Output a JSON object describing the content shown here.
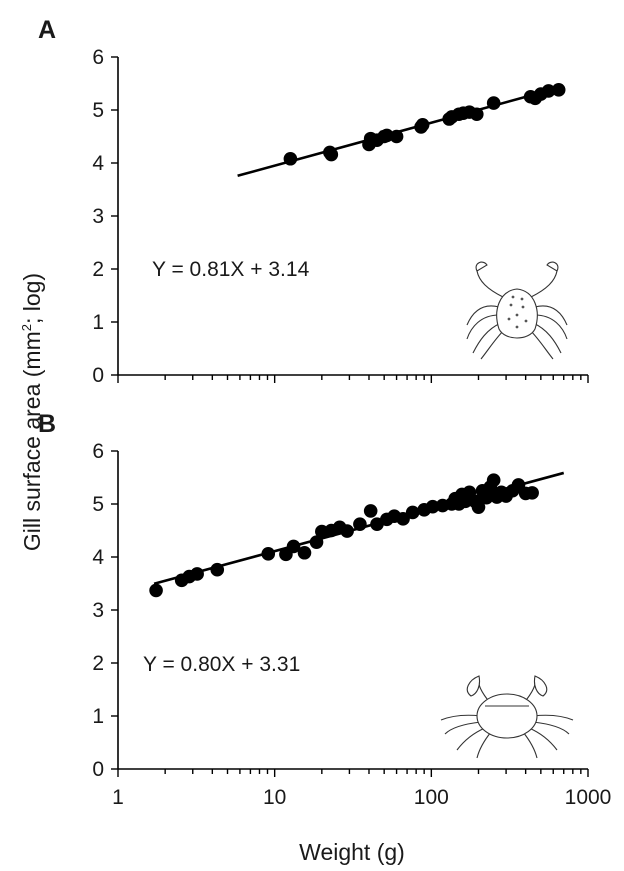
{
  "y_axis_title_pre": "Gill surface area (mm",
  "y_axis_title_sup": "2",
  "y_axis_title_post": "; log)",
  "chart_data": [
    {
      "type": "scatter",
      "panel": "A",
      "equation": "Y = 0.81X + 3.14",
      "icon": "spider-crab-icon",
      "x_scale": "log",
      "xlim": [
        1,
        1000
      ],
      "ylim": [
        0,
        6
      ],
      "y_ticks": [
        0,
        1,
        2,
        3,
        4,
        5,
        6
      ],
      "fit_x_range": [
        5.8,
        700
      ],
      "fit": {
        "slope": 0.81,
        "intercept": 3.14
      },
      "x": [
        12.6,
        22.5,
        23,
        40,
        41,
        45,
        50,
        52,
        60,
        86,
        88,
        130,
        135,
        150,
        160,
        175,
        195,
        250,
        430,
        460,
        500,
        560,
        650
      ],
      "y": [
        4.08,
        4.2,
        4.16,
        4.35,
        4.46,
        4.43,
        4.5,
        4.52,
        4.5,
        4.68,
        4.72,
        4.83,
        4.87,
        4.92,
        4.94,
        4.96,
        4.92,
        5.13,
        5.25,
        5.22,
        5.3,
        5.36,
        5.38
      ]
    },
    {
      "type": "scatter",
      "panel": "B",
      "equation": "Y = 0.80X + 3.31",
      "icon": "shore-crab-icon",
      "x_scale": "log",
      "xlim": [
        1,
        1000
      ],
      "ylim": [
        0,
        6
      ],
      "y_ticks": [
        0,
        1,
        2,
        3,
        4,
        5,
        6
      ],
      "x_ticks": [
        1,
        10,
        100,
        1000
      ],
      "x_tick_labels": [
        "1",
        "10",
        "100",
        "1000"
      ],
      "xlabel": "Weight (g)",
      "fit_x_range": [
        1.7,
        700
      ],
      "fit": {
        "slope": 0.8,
        "intercept": 3.31
      },
      "x": [
        1.75,
        2.55,
        2.85,
        3.2,
        4.3,
        9.1,
        11.8,
        13.2,
        15.5,
        18.5,
        20,
        23,
        26,
        29,
        35,
        41,
        45,
        52,
        58,
        66,
        76,
        90,
        102,
        118,
        135,
        142,
        150,
        157,
        165,
        175,
        190,
        200,
        212,
        225,
        238,
        250,
        262,
        280,
        300,
        330,
        360,
        400,
        440
      ],
      "y": [
        3.37,
        3.56,
        3.63,
        3.68,
        3.76,
        4.06,
        4.05,
        4.2,
        4.08,
        4.28,
        4.48,
        4.5,
        4.56,
        4.49,
        4.62,
        4.87,
        4.62,
        4.71,
        4.77,
        4.72,
        4.84,
        4.89,
        4.95,
        4.97,
        5.0,
        5.1,
        5.0,
        5.18,
        5.05,
        5.22,
        5.05,
        4.94,
        5.25,
        5.12,
        5.32,
        5.45,
        5.13,
        5.22,
        5.15,
        5.25,
        5.36,
        5.2,
        5.21
      ]
    }
  ]
}
